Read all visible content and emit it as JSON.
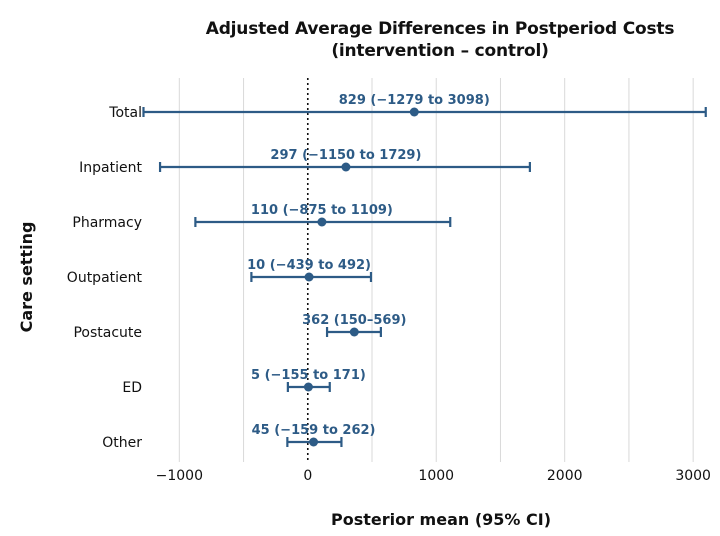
{
  "chart_data": {
    "type": "forest",
    "title_line1": "Adjusted Average Differences in Postperiod Costs",
    "title_line2": "(intervention – control)",
    "xlabel": "Posterior mean (95% CI)",
    "ylabel": "Care setting",
    "xlim": [
      -1275,
      3100
    ],
    "xticks": [
      -1000,
      0,
      1000,
      2000,
      3000
    ],
    "xtick_labels": [
      "−1000",
      "0",
      "1000",
      "2000",
      "3000"
    ],
    "reference_line": 0,
    "grid": "vertical",
    "categories": [
      "Total",
      "Inpatient",
      "Pharmacy",
      "Outpatient",
      "Postacute",
      "ED",
      "Other"
    ],
    "estimates": [
      {
        "label": "Total",
        "mean": 829,
        "lower": -1279,
        "upper": 3098,
        "annotation": "829 (−1279 to 3098)"
      },
      {
        "label": "Inpatient",
        "mean": 297,
        "lower": -1150,
        "upper": 1729,
        "annotation": "297 (−1150 to 1729)"
      },
      {
        "label": "Pharmacy",
        "mean": 110,
        "lower": -875,
        "upper": 1109,
        "annotation": "110 (−875 to 1109)"
      },
      {
        "label": "Outpatient",
        "mean": 10,
        "lower": -439,
        "upper": 492,
        "annotation": "10 (−439 to 492)"
      },
      {
        "label": "Postacute",
        "mean": 362,
        "lower": 150,
        "upper": 569,
        "annotation": "362 (150–569)"
      },
      {
        "label": "ED",
        "mean": 5,
        "lower": -155,
        "upper": 171,
        "annotation": "5 (−155 to 171)"
      },
      {
        "label": "Other",
        "mean": 45,
        "lower": -159,
        "upper": 262,
        "annotation": "45 (−159 to 262)"
      }
    ],
    "colors": {
      "series": "#2d5b86",
      "grid": "#d9d9d9",
      "reference": "#111111",
      "text": "#111111"
    }
  }
}
